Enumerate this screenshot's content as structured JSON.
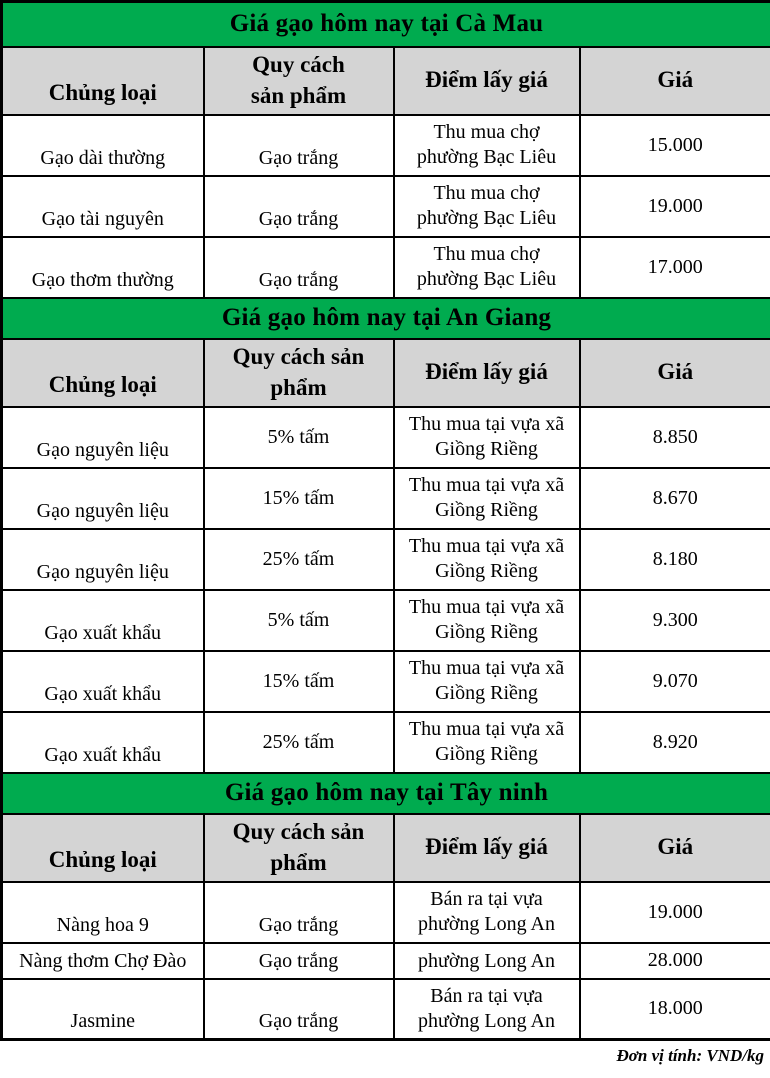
{
  "colors": {
    "section_title_bg": "#00AB4F",
    "column_header_bg": "#D4D4D4",
    "border": "#000000"
  },
  "sections": [
    {
      "title": "Giá gạo hôm nay tại Cà Mau",
      "headers": {
        "chung_loai": "Chủng loại",
        "quy_cach_l1": "Quy cách",
        "quy_cach_l2": "sản phẩm",
        "diem": "Điểm lấy giá",
        "gia": "Giá"
      },
      "rows": [
        {
          "chung_loai": "Gạo dài thường",
          "quy_cach": "Gạo trắng",
          "diem_l1": "Thu mua chợ",
          "diem_l2": "phường Bạc Liêu",
          "gia": "15.000"
        },
        {
          "chung_loai": "Gạo tài nguyên",
          "quy_cach": "Gạo trắng",
          "diem_l1": "Thu mua chợ",
          "diem_l2": "phường Bạc Liêu",
          "gia": "19.000"
        },
        {
          "chung_loai": "Gạo thơm thường",
          "quy_cach": "Gạo trắng",
          "diem_l1": "Thu mua chợ",
          "diem_l2": "phường Bạc Liêu",
          "gia": "17.000"
        }
      ]
    },
    {
      "title": "Giá gạo hôm nay tại An Giang",
      "headers": {
        "chung_loai": "Chủng loại",
        "quy_cach_l1": "Quy cách sản",
        "quy_cach_l2": "phẩm",
        "diem": "Điểm lấy giá",
        "gia": "Giá"
      },
      "rows": [
        {
          "chung_loai": "Gạo nguyên liệu",
          "quy_cach": "5% tấm",
          "diem_l1": "Thu mua tại vựa xã",
          "diem_l2": "Giồng Riềng",
          "gia": "8.850"
        },
        {
          "chung_loai": "Gạo nguyên liệu",
          "quy_cach": "15% tấm",
          "diem_l1": "Thu mua tại vựa xã",
          "diem_l2": "Giồng Riềng",
          "gia": "8.670"
        },
        {
          "chung_loai": "Gạo nguyên liệu",
          "quy_cach": "25% tấm",
          "diem_l1": "Thu mua tại vựa xã",
          "diem_l2": "Giồng Riềng",
          "gia": "8.180"
        },
        {
          "chung_loai": "Gạo xuất khẩu",
          "quy_cach": "5% tấm",
          "diem_l1": "Thu mua tại vựa xã",
          "diem_l2": "Giồng Riềng",
          "gia": "9.300"
        },
        {
          "chung_loai": "Gạo xuất khẩu",
          "quy_cach": "15% tấm",
          "diem_l1": "Thu mua tại vựa xã",
          "diem_l2": "Giồng Riềng",
          "gia": "9.070"
        },
        {
          "chung_loai": "Gạo xuất khẩu",
          "quy_cach": "25% tấm",
          "diem_l1": "Thu mua tại vựa xã",
          "diem_l2": "Giồng Riềng",
          "gia": "8.920"
        }
      ]
    },
    {
      "title": "Giá gạo hôm nay tại Tây ninh",
      "headers": {
        "chung_loai": "Chủng loại",
        "quy_cach_l1": "Quy cách sản",
        "quy_cach_l2": "phẩm",
        "diem": "Điểm lấy giá",
        "gia": "Giá"
      },
      "rows": [
        {
          "chung_loai": "Nàng hoa 9",
          "quy_cach": "Gạo trắng",
          "diem_l1": "Bán ra tại vựa",
          "diem_l2": "phường Long An",
          "gia": "19.000"
        },
        {
          "chung_loai": "Nàng thơm Chợ Đào",
          "quy_cach": "Gạo trắng",
          "diem_l1": "phường Long An",
          "diem_l2": "",
          "gia": "28.000"
        },
        {
          "chung_loai": "Jasmine",
          "quy_cach": "Gạo trắng",
          "diem_l1": "Bán ra tại vựa",
          "diem_l2": "phường Long An",
          "gia": "18.000"
        }
      ]
    }
  ],
  "footer": {
    "unit_label": "Đơn vị tính: VND/kg"
  }
}
